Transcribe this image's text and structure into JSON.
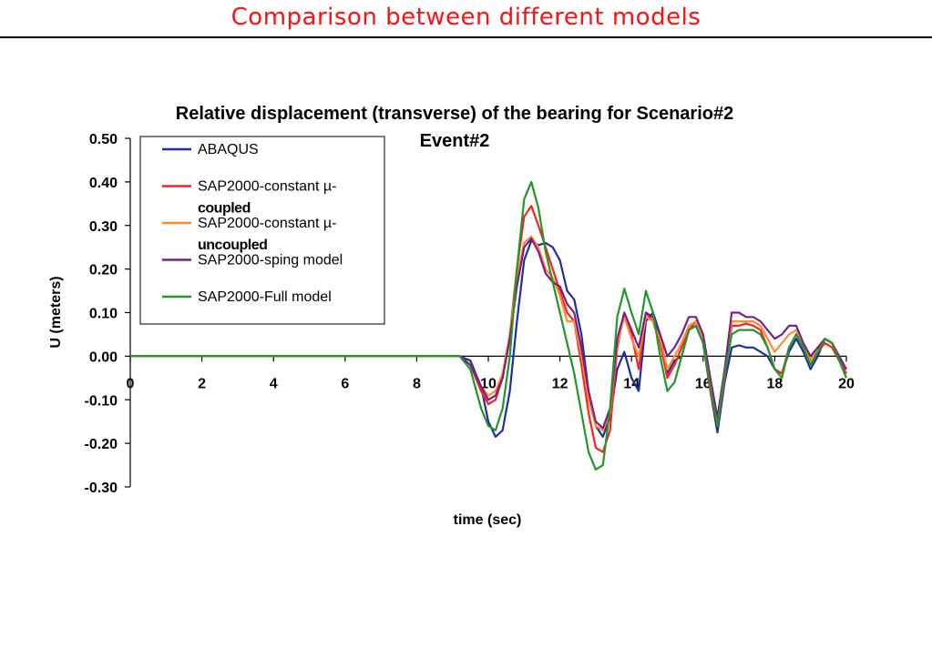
{
  "slide": {
    "title": "Comparison between different models"
  },
  "chart_data": {
    "type": "line",
    "title_line1": "Relative displacement (transverse) of the bearing for Scenario#2",
    "title_line2": "Event#2",
    "xlabel": "time (sec)",
    "ylabel": "U (meters)",
    "xlim": [
      0,
      20
    ],
    "ylim": [
      -0.3,
      0.5
    ],
    "x_ticks": [
      0,
      2,
      4,
      6,
      8,
      10,
      12,
      14,
      16,
      18,
      20
    ],
    "x_tick_labels": [
      "0",
      "2",
      "4",
      "6",
      "8",
      "10",
      "12",
      "14",
      "16",
      "18",
      "20"
    ],
    "y_ticks": [
      0.5,
      0.4,
      0.3,
      0.2,
      0.1,
      0.0,
      -0.1,
      -0.2,
      -0.3
    ],
    "y_tick_labels": [
      "0.50",
      "0.40",
      "0.30",
      "0.20",
      "0.10",
      "0.00",
      "-0.10",
      "-0.20",
      "-0.30"
    ],
    "grid": false,
    "legend_position": "top-left",
    "series": [
      {
        "name_line1": "ABAQUS",
        "name_line2": "",
        "color": "#1f2fa0",
        "points": [
          [
            0,
            0
          ],
          [
            9.2,
            0
          ],
          [
            9.5,
            -0.01
          ],
          [
            9.8,
            -0.07
          ],
          [
            10.0,
            -0.15
          ],
          [
            10.2,
            -0.185
          ],
          [
            10.4,
            -0.17
          ],
          [
            10.6,
            -0.08
          ],
          [
            10.8,
            0.08
          ],
          [
            11.0,
            0.22
          ],
          [
            11.2,
            0.265
          ],
          [
            11.4,
            0.255
          ],
          [
            11.6,
            0.26
          ],
          [
            11.8,
            0.25
          ],
          [
            12.0,
            0.22
          ],
          [
            12.2,
            0.15
          ],
          [
            12.4,
            0.13
          ],
          [
            12.6,
            0.05
          ],
          [
            12.8,
            -0.08
          ],
          [
            13.0,
            -0.16
          ],
          [
            13.2,
            -0.185
          ],
          [
            13.4,
            -0.14
          ],
          [
            13.6,
            -0.03
          ],
          [
            13.8,
            0.01
          ],
          [
            14.0,
            -0.05
          ],
          [
            14.2,
            -0.08
          ],
          [
            14.4,
            0.08
          ],
          [
            14.6,
            0.1
          ],
          [
            14.8,
            0.05
          ],
          [
            15.0,
            -0.04
          ],
          [
            15.2,
            -0.01
          ],
          [
            15.4,
            0.0
          ],
          [
            15.6,
            0.06
          ],
          [
            15.8,
            0.07
          ],
          [
            16.0,
            0.03
          ],
          [
            16.2,
            -0.08
          ],
          [
            16.4,
            -0.175
          ],
          [
            16.6,
            -0.06
          ],
          [
            16.8,
            0.02
          ],
          [
            17.0,
            0.025
          ],
          [
            17.2,
            0.02
          ],
          [
            17.4,
            0.02
          ],
          [
            17.6,
            0.01
          ],
          [
            17.8,
            0.0
          ],
          [
            18.0,
            -0.03
          ],
          [
            18.2,
            -0.04
          ],
          [
            18.4,
            0.01
          ],
          [
            18.6,
            0.04
          ],
          [
            18.8,
            0.01
          ],
          [
            19.0,
            -0.03
          ],
          [
            19.2,
            0.0
          ],
          [
            19.4,
            0.04
          ],
          [
            19.6,
            0.03
          ],
          [
            19.8,
            -0.01
          ],
          [
            20.0,
            -0.04
          ]
        ]
      },
      {
        "name_line1": "SAP2000-constant µ-",
        "name_line2": "coupled",
        "color": "#ff2020",
        "points": [
          [
            0,
            0
          ],
          [
            9.2,
            0
          ],
          [
            9.5,
            -0.02
          ],
          [
            9.8,
            -0.08
          ],
          [
            10.0,
            -0.11
          ],
          [
            10.2,
            -0.1
          ],
          [
            10.4,
            -0.05
          ],
          [
            10.6,
            0.05
          ],
          [
            10.8,
            0.2
          ],
          [
            11.0,
            0.32
          ],
          [
            11.2,
            0.345
          ],
          [
            11.4,
            0.3
          ],
          [
            11.6,
            0.25
          ],
          [
            11.8,
            0.2
          ],
          [
            12.0,
            0.15
          ],
          [
            12.2,
            0.1
          ],
          [
            12.4,
            0.08
          ],
          [
            12.6,
            -0.02
          ],
          [
            12.8,
            -0.13
          ],
          [
            13.0,
            -0.21
          ],
          [
            13.2,
            -0.22
          ],
          [
            13.4,
            -0.17
          ],
          [
            13.6,
            0.02
          ],
          [
            13.8,
            0.1
          ],
          [
            14.0,
            0.05
          ],
          [
            14.2,
            -0.03
          ],
          [
            14.4,
            0.1
          ],
          [
            14.6,
            0.08
          ],
          [
            14.8,
            0.03
          ],
          [
            15.0,
            -0.05
          ],
          [
            15.2,
            -0.02
          ],
          [
            15.4,
            0.02
          ],
          [
            15.6,
            0.06
          ],
          [
            15.8,
            0.08
          ],
          [
            16.0,
            0.03
          ],
          [
            16.2,
            -0.08
          ],
          [
            16.4,
            -0.16
          ],
          [
            16.6,
            -0.05
          ],
          [
            16.8,
            0.07
          ],
          [
            17.0,
            0.07
          ],
          [
            17.2,
            0.075
          ],
          [
            17.4,
            0.07
          ],
          [
            17.6,
            0.06
          ],
          [
            17.8,
            0.02
          ],
          [
            18.0,
            -0.03
          ],
          [
            18.2,
            -0.04
          ],
          [
            18.4,
            0.02
          ],
          [
            18.6,
            0.05
          ],
          [
            18.8,
            0.02
          ],
          [
            19.0,
            -0.02
          ],
          [
            19.2,
            0.01
          ],
          [
            19.4,
            0.03
          ],
          [
            19.6,
            0.02
          ],
          [
            19.8,
            -0.01
          ],
          [
            20.0,
            -0.04
          ]
        ]
      },
      {
        "name_line1": "SAP2000-constant µ-",
        "name_line2": "uncoupled",
        "color": "#ff8c2a",
        "points": [
          [
            0,
            0
          ],
          [
            9.2,
            0
          ],
          [
            9.5,
            -0.02
          ],
          [
            9.8,
            -0.07
          ],
          [
            10.0,
            -0.09
          ],
          [
            10.2,
            -0.08
          ],
          [
            10.4,
            -0.04
          ],
          [
            10.6,
            0.05
          ],
          [
            10.8,
            0.18
          ],
          [
            11.0,
            0.26
          ],
          [
            11.2,
            0.275
          ],
          [
            11.4,
            0.25
          ],
          [
            11.6,
            0.2
          ],
          [
            11.8,
            0.18
          ],
          [
            12.0,
            0.14
          ],
          [
            12.2,
            0.08
          ],
          [
            12.4,
            0.08
          ],
          [
            12.6,
            0.0
          ],
          [
            12.8,
            -0.1
          ],
          [
            13.0,
            -0.16
          ],
          [
            13.2,
            -0.17
          ],
          [
            13.4,
            -0.13
          ],
          [
            13.6,
            0.03
          ],
          [
            13.8,
            0.09
          ],
          [
            14.0,
            0.04
          ],
          [
            14.2,
            0.0
          ],
          [
            14.4,
            0.09
          ],
          [
            14.6,
            0.08
          ],
          [
            14.8,
            0.04
          ],
          [
            15.0,
            -0.03
          ],
          [
            15.2,
            0.0
          ],
          [
            15.4,
            0.03
          ],
          [
            15.6,
            0.07
          ],
          [
            15.8,
            0.08
          ],
          [
            16.0,
            0.04
          ],
          [
            16.2,
            -0.06
          ],
          [
            16.4,
            -0.15
          ],
          [
            16.6,
            -0.04
          ],
          [
            16.8,
            0.08
          ],
          [
            17.0,
            0.08
          ],
          [
            17.2,
            0.08
          ],
          [
            17.4,
            0.08
          ],
          [
            17.6,
            0.07
          ],
          [
            17.8,
            0.04
          ],
          [
            18.0,
            0.01
          ],
          [
            18.2,
            0.03
          ],
          [
            18.4,
            0.05
          ],
          [
            18.6,
            0.06
          ],
          [
            18.8,
            0.03
          ],
          [
            19.0,
            -0.01
          ],
          [
            19.2,
            0.02
          ],
          [
            19.4,
            0.04
          ],
          [
            19.6,
            0.03
          ],
          [
            19.8,
            0.0
          ],
          [
            20.0,
            -0.03
          ]
        ]
      },
      {
        "name_line1": "SAP2000-sping model",
        "name_line2": "",
        "color": "#7a1f8a",
        "points": [
          [
            0,
            0
          ],
          [
            9.2,
            0
          ],
          [
            9.5,
            -0.02
          ],
          [
            9.8,
            -0.07
          ],
          [
            10.0,
            -0.1
          ],
          [
            10.2,
            -0.09
          ],
          [
            10.4,
            -0.05
          ],
          [
            10.6,
            0.04
          ],
          [
            10.8,
            0.16
          ],
          [
            11.0,
            0.25
          ],
          [
            11.2,
            0.27
          ],
          [
            11.4,
            0.24
          ],
          [
            11.6,
            0.19
          ],
          [
            11.8,
            0.17
          ],
          [
            12.0,
            0.16
          ],
          [
            12.2,
            0.12
          ],
          [
            12.4,
            0.1
          ],
          [
            12.6,
            0.02
          ],
          [
            12.8,
            -0.08
          ],
          [
            13.0,
            -0.15
          ],
          [
            13.2,
            -0.165
          ],
          [
            13.4,
            -0.12
          ],
          [
            13.6,
            0.04
          ],
          [
            13.8,
            0.1
          ],
          [
            14.0,
            0.06
          ],
          [
            14.2,
            0.02
          ],
          [
            14.4,
            0.1
          ],
          [
            14.6,
            0.09
          ],
          [
            14.8,
            0.05
          ],
          [
            15.0,
            0.0
          ],
          [
            15.2,
            0.02
          ],
          [
            15.4,
            0.05
          ],
          [
            15.6,
            0.09
          ],
          [
            15.8,
            0.09
          ],
          [
            16.0,
            0.05
          ],
          [
            16.2,
            -0.05
          ],
          [
            16.4,
            -0.14
          ],
          [
            16.6,
            -0.03
          ],
          [
            16.8,
            0.1
          ],
          [
            17.0,
            0.1
          ],
          [
            17.2,
            0.09
          ],
          [
            17.4,
            0.09
          ],
          [
            17.6,
            0.08
          ],
          [
            17.8,
            0.06
          ],
          [
            18.0,
            0.04
          ],
          [
            18.2,
            0.05
          ],
          [
            18.4,
            0.07
          ],
          [
            18.6,
            0.07
          ],
          [
            18.8,
            0.03
          ],
          [
            19.0,
            0.0
          ],
          [
            19.2,
            0.02
          ],
          [
            19.4,
            0.04
          ],
          [
            19.6,
            0.03
          ],
          [
            19.8,
            0.0
          ],
          [
            20.0,
            -0.03
          ]
        ]
      },
      {
        "name_line1": "SAP2000-Full model",
        "name_line2": "",
        "color": "#22962a",
        "points": [
          [
            0,
            0
          ],
          [
            9.2,
            0
          ],
          [
            9.5,
            -0.03
          ],
          [
            9.8,
            -0.12
          ],
          [
            10.0,
            -0.16
          ],
          [
            10.2,
            -0.17
          ],
          [
            10.4,
            -0.12
          ],
          [
            10.6,
            0.0
          ],
          [
            10.8,
            0.2
          ],
          [
            11.0,
            0.36
          ],
          [
            11.2,
            0.4
          ],
          [
            11.4,
            0.34
          ],
          [
            11.6,
            0.24
          ],
          [
            11.8,
            0.17
          ],
          [
            12.0,
            0.1
          ],
          [
            12.2,
            0.03
          ],
          [
            12.4,
            -0.04
          ],
          [
            12.6,
            -0.13
          ],
          [
            12.8,
            -0.22
          ],
          [
            13.0,
            -0.26
          ],
          [
            13.2,
            -0.25
          ],
          [
            13.4,
            -0.12
          ],
          [
            13.6,
            0.09
          ],
          [
            13.8,
            0.155
          ],
          [
            14.0,
            0.1
          ],
          [
            14.2,
            0.05
          ],
          [
            14.4,
            0.15
          ],
          [
            14.6,
            0.1
          ],
          [
            14.8,
            0.0
          ],
          [
            15.0,
            -0.08
          ],
          [
            15.2,
            -0.06
          ],
          [
            15.4,
            0.0
          ],
          [
            15.6,
            0.06
          ],
          [
            15.8,
            0.07
          ],
          [
            16.0,
            0.03
          ],
          [
            16.2,
            -0.07
          ],
          [
            16.4,
            -0.16
          ],
          [
            16.6,
            -0.04
          ],
          [
            16.8,
            0.05
          ],
          [
            17.0,
            0.06
          ],
          [
            17.2,
            0.06
          ],
          [
            17.4,
            0.06
          ],
          [
            17.6,
            0.05
          ],
          [
            17.8,
            0.02
          ],
          [
            18.0,
            -0.03
          ],
          [
            18.2,
            -0.05
          ],
          [
            18.4,
            0.02
          ],
          [
            18.6,
            0.05
          ],
          [
            18.8,
            0.02
          ],
          [
            19.0,
            -0.02
          ],
          [
            19.2,
            0.01
          ],
          [
            19.4,
            0.04
          ],
          [
            19.6,
            0.03
          ],
          [
            19.8,
            -0.01
          ],
          [
            20.0,
            -0.05
          ]
        ]
      }
    ]
  }
}
